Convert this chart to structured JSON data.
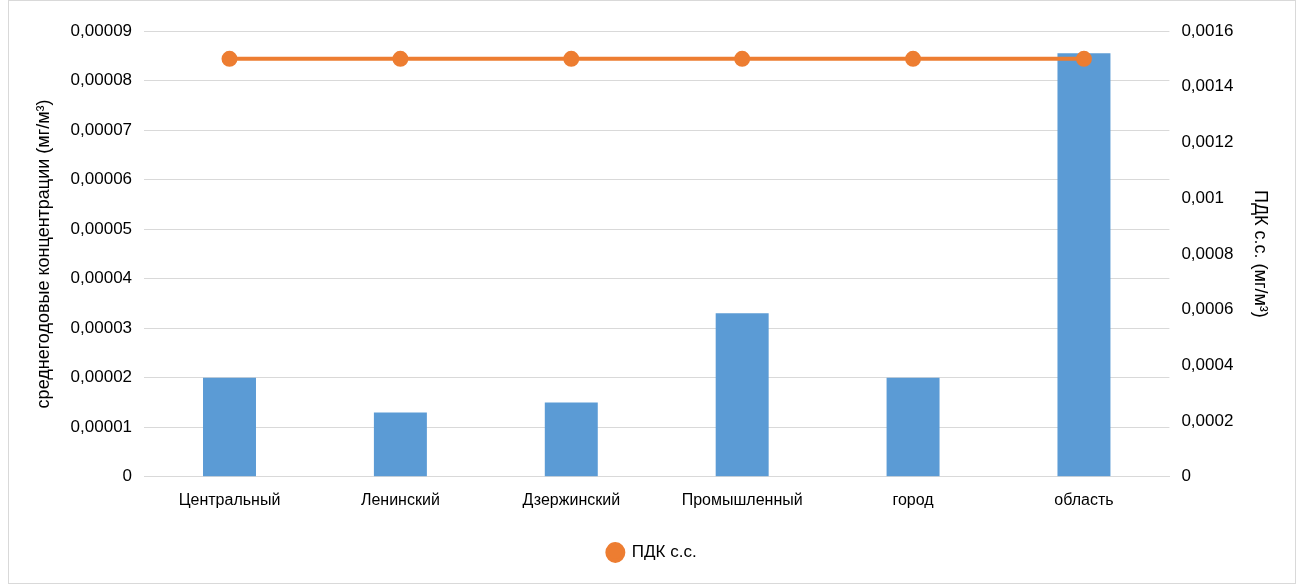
{
  "chart_data": {
    "type": "bar",
    "ylabel": "среднегодовые концентрации (мг/м³)",
    "y2label": "ПДК с.с. (мг/м³)",
    "categories": [
      "Центральный",
      "Ленинский",
      "Дзержинский",
      "Промышленный",
      "город",
      "область"
    ],
    "series": [
      {
        "color": "#5b9bd5",
        "values": [
          2e-05,
          1.3e-05,
          1.5e-05,
          3.3e-05,
          2e-05,
          8.55e-05
        ]
      },
      {
        "type": "line",
        "name": "ПДК с.с.",
        "color": "#ed7d31",
        "axis": "y2",
        "marker": "circle",
        "values": [
          0.0015,
          0.0015,
          0.0015,
          0.0015,
          0.0015,
          0.0015
        ]
      }
    ],
    "ylim": [
      0,
      9e-05
    ],
    "yticks": [
      0,
      {
        "value": 1e-05,
        "label": "0,00001"
      },
      {
        "value": 2e-05,
        "label": "0,00002"
      },
      {
        "value": 3e-05,
        "label": "0,00003"
      },
      {
        "value": 4e-05,
        "label": "0,00004"
      },
      {
        "value": 5e-05,
        "label": "0,00005"
      },
      {
        "value": 6e-05,
        "label": "0,00006"
      },
      {
        "value": 7e-05,
        "label": "0,00007"
      },
      {
        "value": 8e-05,
        "label": "0,00008"
      },
      {
        "value": 9e-05,
        "label": "0,00009"
      }
    ],
    "y2lim": [
      0,
      0.0016
    ],
    "y2ticks": [
      0,
      {
        "value": 0.0002,
        "label": "0,0002"
      },
      {
        "value": 0.0004,
        "label": "0,0004"
      },
      {
        "value": 0.0006,
        "label": "0,0006"
      },
      {
        "value": 0.0008,
        "label": "0,0008"
      },
      {
        "value": 0.001,
        "label": "0,001"
      },
      {
        "value": 0.0012,
        "label": "0,0012"
      },
      {
        "value": 0.0014,
        "label": "0,0014"
      },
      {
        "value": 0.0016,
        "label": "0,0016"
      }
    ],
    "grid": "y",
    "legend": "bottom"
  }
}
